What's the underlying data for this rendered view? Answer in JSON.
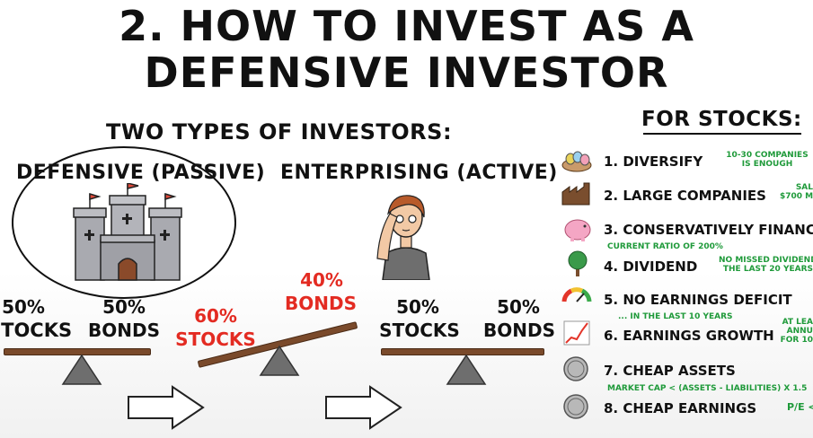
{
  "title": {
    "line1": "2. HOW TO INVEST AS A",
    "line2": "DEFENSIVE INVESTOR"
  },
  "types_header": "TWO TYPES OF INVESTORS:",
  "defensive_label": "DEFENSIVE (PASSIVE)",
  "enterprising_label": "ENTERPRISING (ACTIVE)",
  "scales": [
    {
      "left_pct": "50%",
      "left_word": "STOCKS",
      "right_pct": "50%",
      "right_word": "BONDS"
    },
    {
      "left_pct": "60%",
      "left_word": "STOCKS",
      "right_pct": "40%",
      "right_word": "BONDS"
    },
    {
      "left_pct": "50%",
      "left_word": "STOCKS",
      "right_pct": "50%",
      "right_word": "BONDS"
    }
  ],
  "stocks_header": "FOR STOCKS:",
  "rules": [
    {
      "label": "1. DIVERSIFY",
      "note1": "10-30 COMPANIES",
      "note2": "IS ENOUGH",
      "icon": "nest-eggs-icon"
    },
    {
      "label": "2. LARGE COMPANIES",
      "note1": "SAL",
      "note2": "$700 MI",
      "icon": "factory-icon"
    },
    {
      "label": "3. CONSERVATIVELY FINANC",
      "note1": "CURRENT RATIO OF 200%",
      "icon": "piggy-bank-icon"
    },
    {
      "label": "4. DIVIDEND",
      "note1": "NO MISSED DIVIDENDS",
      "note2": "THE LAST 20 YEARS",
      "icon": "money-tree-icon"
    },
    {
      "label": "5. NO EARNINGS DEFICIT",
      "note1": "... IN THE LAST 10 YEARS",
      "icon": "gauge-icon"
    },
    {
      "label": "6. EARNINGS GROWTH",
      "note1": "AT LEA",
      "note2": "ANNU",
      "note3": "FOR 10",
      "icon": "growth-chart-icon"
    },
    {
      "label": "7. CHEAP ASSETS",
      "note1": "MARKET CAP < (ASSETS - LIABILITIES) X 1.5",
      "icon": "coin-icon"
    },
    {
      "label": "8. CHEAP EARNINGS",
      "note1": "P/E <",
      "icon": "coin-icon"
    }
  ],
  "colors": {
    "red": "#e32b22",
    "green": "#1f9a3a",
    "plank": "#7a4a2b",
    "fulcrum": "#6e6e6e"
  }
}
